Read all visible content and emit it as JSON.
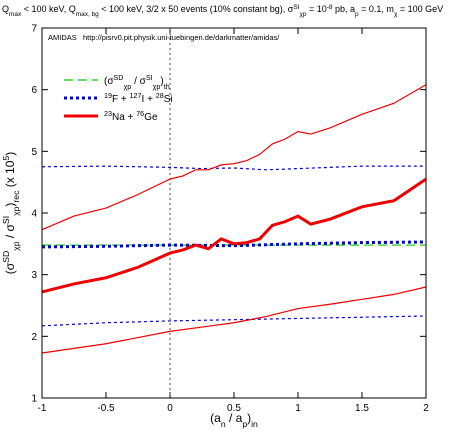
{
  "chart_data": {
    "type": "line",
    "title": [
      "Q",
      {
        "sub": "max"
      },
      " < 100 keV, Q",
      {
        "sub": "max, bg"
      },
      " < 100 keV, 3/2 x 50 events (10% constant bg), σ",
      {
        "sup": "SI"
      },
      {
        "sub": "χp"
      },
      " = 10",
      {
        "sup": "-8"
      },
      " pb, a",
      {
        "sub": "p"
      },
      " = 0.1, m",
      {
        "sub": "χ"
      },
      " = 100 GeV"
    ],
    "annotation": "AMIDAS   http://pisrv0.pit.physik.uni-tuebingen.de/darkmatter/amidas/",
    "xlabel": [
      "(a",
      {
        "sub": "n"
      },
      " / a",
      {
        "sub": "p"
      },
      ")",
      {
        "sub": "in"
      }
    ],
    "ylabel": [
      "(σ",
      {
        "sup": "SD"
      },
      {
        "sub": "χp"
      },
      " / σ",
      {
        "sup": "SI"
      },
      {
        "sub": "χp"
      },
      ")",
      {
        "sub": "rec"
      },
      " (x 10",
      {
        "sup": "5"
      },
      ")"
    ],
    "xlim": [
      -1,
      2
    ],
    "ylim": [
      1,
      7
    ],
    "xticks": [
      -1,
      -0.5,
      0,
      0.5,
      1,
      1.5,
      2
    ],
    "yticks": [
      1,
      2,
      3,
      4,
      5,
      6,
      7
    ],
    "vlines": [
      0
    ],
    "legend": "upper left",
    "series": [
      {
        "name": [
          "(σ",
          {
            "sup": "SD"
          },
          {
            "sub": "χp"
          },
          " / σ",
          {
            "sup": "SI"
          },
          {
            "sub": "χp"
          },
          ")",
          {
            "sub": "th"
          }
        ],
        "color": "#00cc00",
        "dash": "dashed",
        "width": 1.2,
        "x": [
          -1,
          2
        ],
        "values": [
          3.48,
          3.48
        ]
      },
      {
        "name": [
          {
            "sup": "19"
          },
          "F + ",
          {
            "sup": "127"
          },
          "I + ",
          {
            "sup": "28"
          },
          "Si"
        ],
        "color": "#0000dd",
        "dash": "dotted",
        "width": 3,
        "x": [
          -1,
          -0.5,
          0,
          0.5,
          1,
          1.5,
          2
        ],
        "values": [
          3.45,
          3.46,
          3.48,
          3.47,
          3.5,
          3.52,
          3.53
        ]
      },
      {
        "color": "#0000dd",
        "dash": "dotted",
        "width": 1.2,
        "x": [
          -1,
          -0.5,
          0,
          0.25,
          0.5,
          0.75,
          1,
          1.25,
          1.5,
          2
        ],
        "values": [
          4.75,
          4.76,
          4.74,
          4.72,
          4.73,
          4.7,
          4.72,
          4.74,
          4.76,
          4.76
        ]
      },
      {
        "color": "#0000dd",
        "dash": "dotted",
        "width": 1.2,
        "x": [
          -1,
          -0.5,
          0,
          0.5,
          1,
          1.5,
          2
        ],
        "values": [
          2.17,
          2.22,
          2.25,
          2.27,
          2.29,
          2.31,
          2.33
        ]
      },
      {
        "name": [
          {
            "sup": "23"
          },
          "Na + ",
          {
            "sup": "76"
          },
          "Ge"
        ],
        "color": "#ee0000",
        "dash": "solid",
        "width": 3,
        "x": [
          -1,
          -0.75,
          -0.5,
          -0.25,
          0,
          0.1,
          0.2,
          0.3,
          0.4,
          0.5,
          0.6,
          0.7,
          0.8,
          0.9,
          1,
          1.1,
          1.25,
          1.5,
          1.75,
          2
        ],
        "values": [
          2.72,
          2.85,
          2.95,
          3.12,
          3.35,
          3.4,
          3.48,
          3.42,
          3.58,
          3.5,
          3.52,
          3.58,
          3.8,
          3.86,
          3.95,
          3.82,
          3.9,
          4.1,
          4.2,
          4.55
        ]
      },
      {
        "color": "#ee0000",
        "dash": "solid",
        "width": 1.2,
        "x": [
          -1,
          -0.75,
          -0.5,
          -0.25,
          0,
          0.1,
          0.2,
          0.3,
          0.4,
          0.5,
          0.6,
          0.7,
          0.8,
          0.9,
          1,
          1.1,
          1.25,
          1.5,
          1.75,
          2
        ],
        "values": [
          3.73,
          3.95,
          4.08,
          4.3,
          4.55,
          4.6,
          4.7,
          4.7,
          4.78,
          4.8,
          4.85,
          4.95,
          5.12,
          5.2,
          5.32,
          5.28,
          5.38,
          5.6,
          5.78,
          6.08
        ]
      },
      {
        "color": "#ee0000",
        "dash": "solid",
        "width": 1.2,
        "x": [
          -1,
          -0.5,
          0,
          0.25,
          0.5,
          0.75,
          1,
          1.25,
          1.5,
          1.75,
          2
        ],
        "values": [
          1.73,
          1.88,
          2.08,
          2.15,
          2.22,
          2.32,
          2.45,
          2.52,
          2.6,
          2.68,
          2.8
        ]
      }
    ]
  }
}
